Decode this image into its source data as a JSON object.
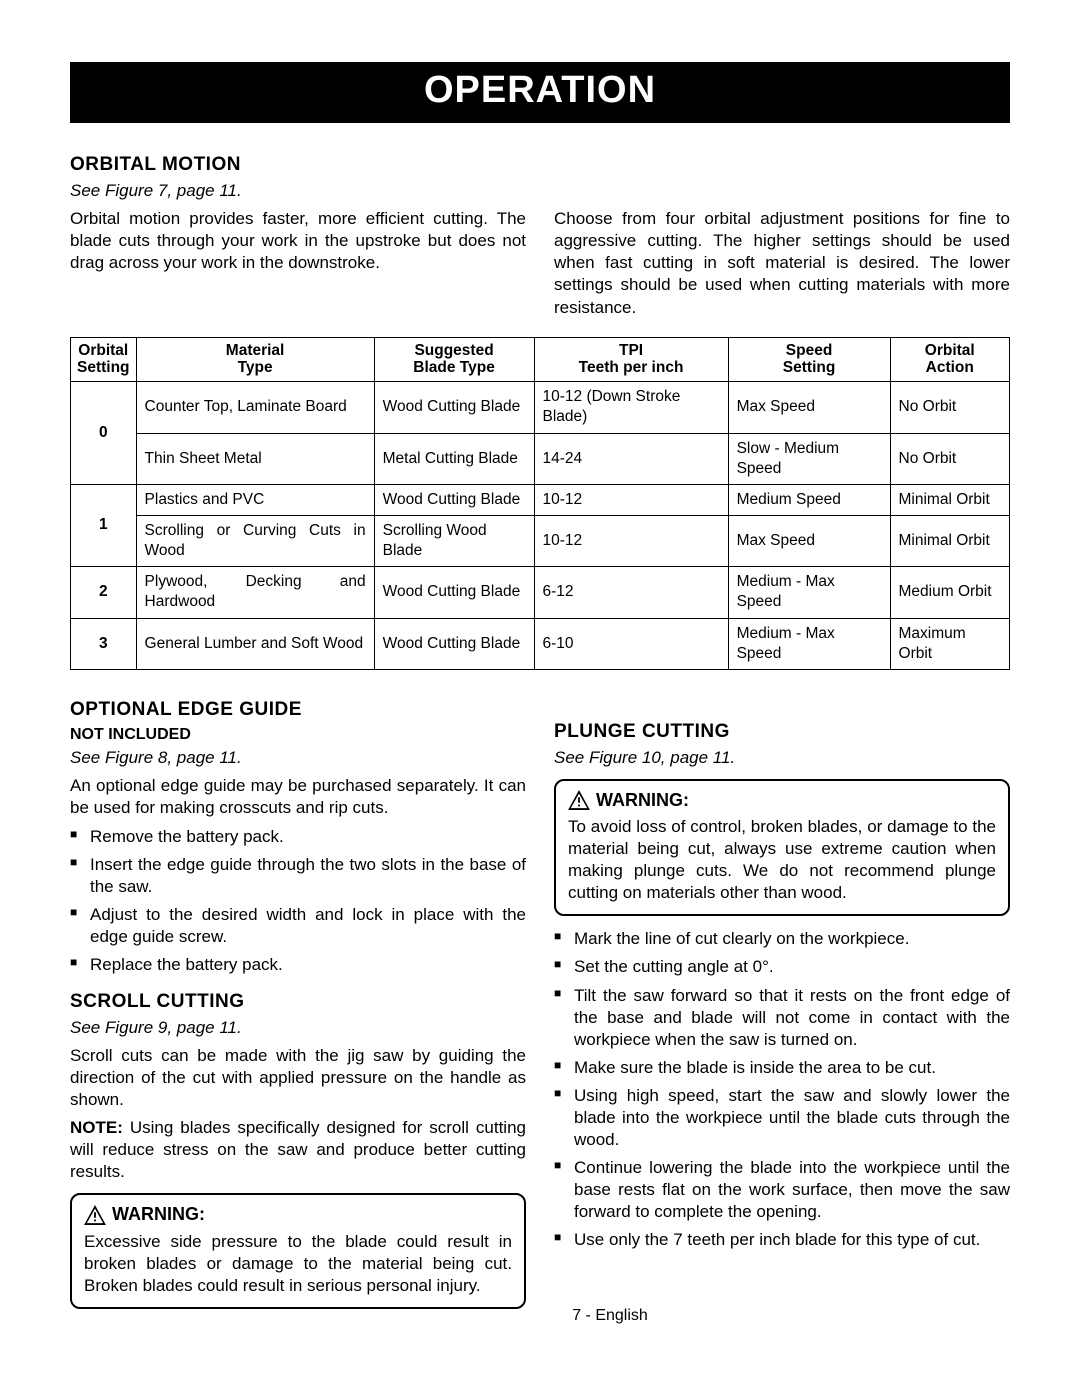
{
  "banner": "OPERATION",
  "orbital": {
    "title": "ORBITAL MOTION",
    "figref": "See Figure 7, page 11.",
    "left_para": "Orbital motion provides faster, more efficient cutting. The blade cuts through your work in the upstroke but does not drag across your work in the downstroke.",
    "right_para": "Choose from four orbital adjustment positions for fine to aggressive cutting. The higher settings should be used when fast cutting in soft material is desired. The lower settings should be used when cutting materials with more resistance."
  },
  "table": {
    "headers": [
      "Orbital\nSetting",
      "Material\nType",
      "Suggested\nBlade Type",
      "TPI\nTeeth per inch",
      "Speed\nSetting",
      "Orbital\nAction"
    ],
    "rows": [
      {
        "setting": "0",
        "rowspan": 2,
        "material": "Counter Top, Laminate Board",
        "blade": "Wood Cutting Blade",
        "tpi": "10-12 (Down Stroke Blade)",
        "speed": "Max Speed",
        "action": "No Orbit"
      },
      {
        "material": "Thin Sheet Metal",
        "blade": "Metal Cutting Blade",
        "tpi": "14-24",
        "speed": "Slow - Medium Speed",
        "action": "No Orbit"
      },
      {
        "setting": "1",
        "rowspan": 2,
        "material": "Plastics and PVC",
        "blade": "Wood Cutting Blade",
        "tpi": "10-12",
        "speed": "Medium Speed",
        "action": "Minimal Orbit"
      },
      {
        "material": "Scrolling or Curving Cuts in Wood",
        "blade": "Scrolling Wood Blade",
        "tpi": "10-12",
        "speed": "Max Speed",
        "action": "Minimal Orbit"
      },
      {
        "setting": "2",
        "rowspan": 1,
        "material": "Plywood, Decking and Hardwood",
        "blade": "Wood Cutting Blade",
        "tpi": "6-12",
        "speed": "Medium - Max Speed",
        "action": "Medium Orbit"
      },
      {
        "setting": "3",
        "rowspan": 1,
        "material": "General Lumber and Soft Wood",
        "blade": "Wood Cutting Blade",
        "tpi": "6-10",
        "speed": "Medium - Max Speed",
        "action": "Maximum Orbit"
      }
    ]
  },
  "edge": {
    "title": "OPTIONAL EDGE GUIDE",
    "sub": "NOT INCLUDED",
    "figref": "See Figure 8, page 11.",
    "para": "An optional edge guide may be purchased separately. It can be used for making crosscuts and rip cuts.",
    "items": [
      "Remove the battery pack.",
      "Insert the edge guide through the two slots in the base of the saw.",
      "Adjust to the desired width and lock in place with the edge guide screw.",
      "Replace the battery pack."
    ]
  },
  "scroll": {
    "title": "SCROLL CUTTING",
    "figref": "See Figure 9, page 11.",
    "para": "Scroll cuts can be made with the jig saw by guiding the direction of the cut with applied pressure on the handle as shown.",
    "note_lead": "NOTE:",
    "note": " Using blades specifically designed for scroll cutting will reduce stress on the saw and produce better cutting results.",
    "warn_head": "WARNING:",
    "warn_body": "Excessive side pressure to the blade could result in broken blades or damage to the material being cut. Broken blades could result in serious personal injury."
  },
  "plunge": {
    "title": "PLUNGE CUTTING",
    "figref": "See Figure 10, page 11.",
    "warn_head": "WARNING:",
    "warn_body": "To avoid loss of control, broken blades, or damage to the material being cut, always use extreme caution when making plunge cuts. We do not recommend plunge cutting on materials other than wood.",
    "items": [
      "Mark the line of cut clearly on the workpiece.",
      "Set the cutting angle at 0°.",
      "Tilt the saw forward so that it rests on the front edge of the base and blade will not come in contact with the workpiece when the saw is turned on.",
      "Make sure the blade is inside the area to be cut.",
      "Using high speed, start the saw and slowly lower the blade into the workpiece until the blade cuts through the wood.",
      "Continue lowering the blade into the workpiece until the base rests flat on the work surface, then move the saw forward to complete the opening.",
      "Use only the 7 teeth per inch blade for this type of cut."
    ]
  },
  "footer": "7 - English"
}
